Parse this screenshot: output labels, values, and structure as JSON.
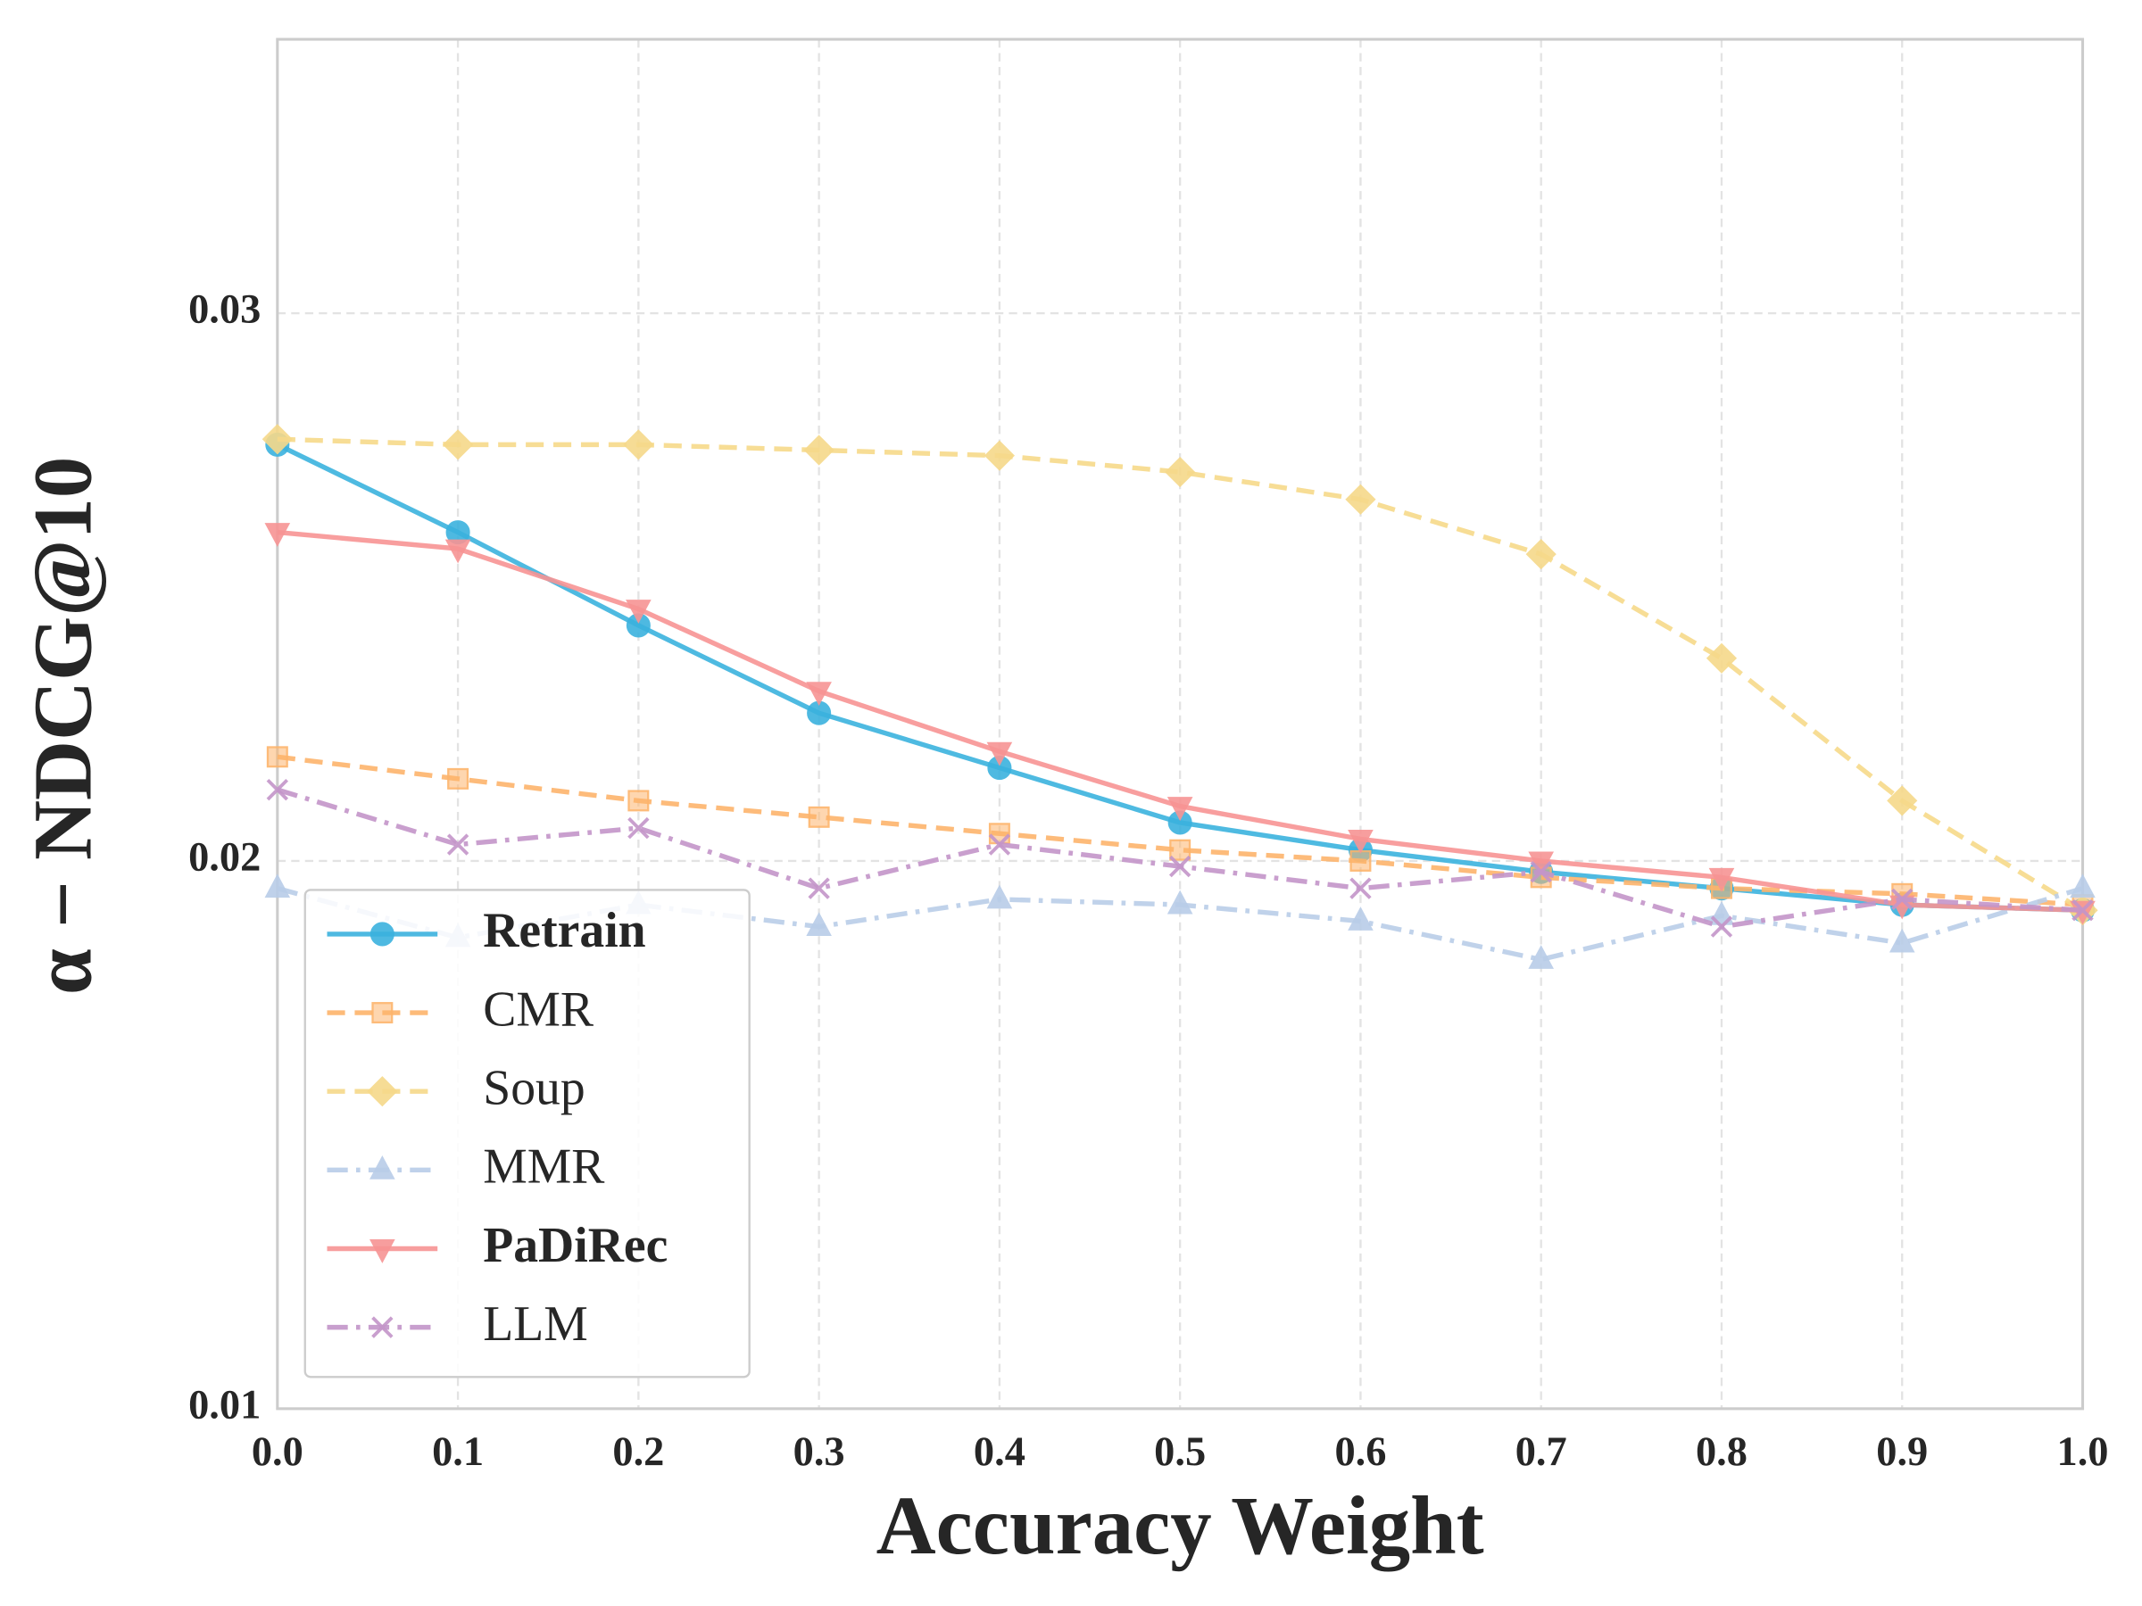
{
  "chart_data": {
    "type": "line",
    "xlabel": "Accuracy Weight",
    "ylabel": "α − NDCG@10",
    "x": [
      0,
      0.1,
      0.2,
      0.3,
      0.4,
      0.5,
      0.6,
      0.7,
      0.8,
      0.9,
      1
    ],
    "xlim": [
      0,
      1
    ],
    "xticks": [
      {
        "value": 0,
        "label": "0.0"
      },
      0.1,
      0.2,
      0.3,
      0.4,
      0.5,
      0.6,
      0.7,
      0.8,
      0.9,
      {
        "value": 1,
        "label": "1.0"
      }
    ],
    "ylim": [
      0.01,
      0.035
    ],
    "yticks": [
      0.01,
      0.02,
      0.03
    ],
    "grid": true,
    "legend": "lower left",
    "series": [
      {
        "name": "Retrain",
        "color": "#3bb2de",
        "dash": "solid",
        "marker": "circle",
        "bold": true,
        "values": [
          0.0276,
          0.026,
          0.0243,
          0.0227,
          0.0217,
          0.0207,
          0.0202,
          0.0198,
          0.0195,
          0.0192,
          0.0191
        ]
      },
      {
        "name": "CMR",
        "color": "#fdb46b",
        "dash": "dashed",
        "marker": "square",
        "bold": false,
        "values": [
          0.0219,
          0.0215,
          0.0211,
          0.0208,
          0.0205,
          0.0202,
          0.02,
          0.0197,
          0.0195,
          0.0194,
          0.0192
        ]
      },
      {
        "name": "Soup",
        "color": "#f6d98a",
        "dash": "dashed",
        "marker": "diamond",
        "bold": false,
        "values": [
          0.0277,
          0.0276,
          0.0276,
          0.0275,
          0.0274,
          0.0271,
          0.0266,
          0.0256,
          0.0237,
          0.0211,
          0.0191
        ]
      },
      {
        "name": "MMR",
        "color": "#b9cde8",
        "dash": "dashdot",
        "marker": "triangle-up",
        "bold": false,
        "values": [
          0.0195,
          0.0186,
          0.0192,
          0.0188,
          0.0193,
          0.0192,
          0.0189,
          0.0182,
          0.019,
          0.0185,
          0.0195
        ]
      },
      {
        "name": "PaDiRec",
        "color": "#f79494",
        "dash": "solid",
        "marker": "triangle-down",
        "bold": true,
        "values": [
          0.026,
          0.0257,
          0.0246,
          0.0231,
          0.022,
          0.021,
          0.0204,
          0.02,
          0.0197,
          0.0192,
          0.0191
        ]
      },
      {
        "name": "LLM",
        "color": "#c395c9",
        "dash": "dashdot",
        "marker": "x",
        "bold": false,
        "values": [
          0.0213,
          0.0203,
          0.0206,
          0.0195,
          0.0203,
          0.0199,
          0.0195,
          0.0198,
          0.0188,
          0.0193,
          0.0191
        ]
      }
    ]
  }
}
